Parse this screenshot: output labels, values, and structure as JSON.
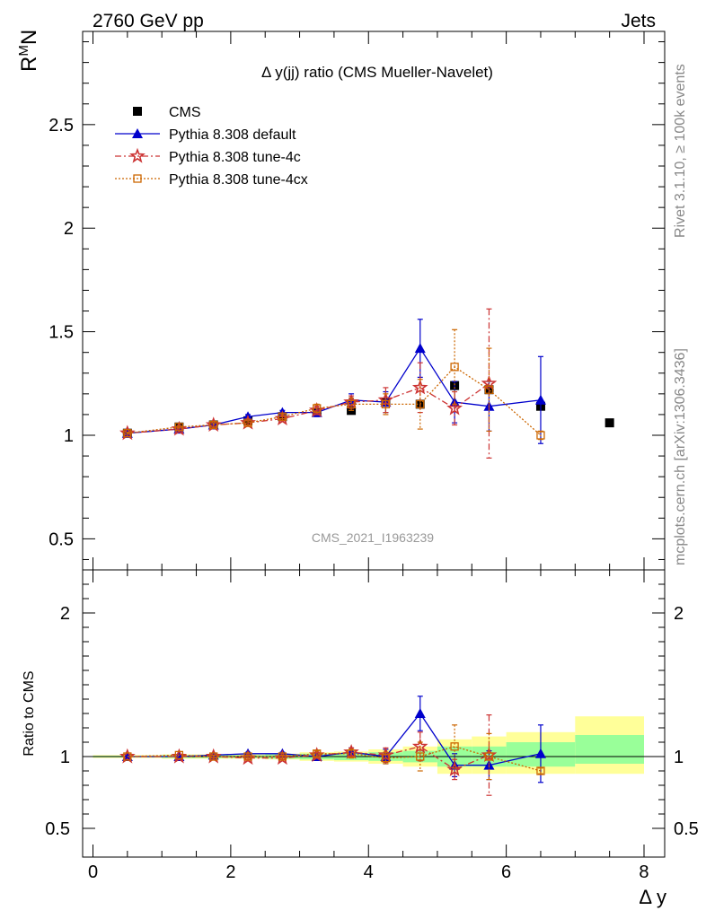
{
  "header": {
    "left": "2760 GeV pp",
    "right": "Jets"
  },
  "side_labels": {
    "rivet": "Rivet 3.1.10, ≥ 100k events",
    "mcplots": "mcplots.cern.ch [arXiv:1306.3436]"
  },
  "chart_data": {
    "type": "line",
    "title": "Δ y(jj) ratio (CMS Mueller-Navelet)",
    "watermark": "CMS_2021_I1963239",
    "ylabel": "R^M N",
    "ylabel_base": "R",
    "ylabel_sup": "M",
    "ylabel_sub": "N",
    "xlabel": "Δ y",
    "ratio_ylabel": "Ratio to CMS",
    "xlim": [
      -0.15,
      8.3
    ],
    "ylim": [
      0.35,
      2.95
    ],
    "ratio_ylim": [
      0.3,
      2.3
    ],
    "x_ticks": [
      "0",
      "2",
      "4",
      "6",
      "8"
    ],
    "y_ticks": [
      "0.5",
      "1",
      "1.5",
      "2",
      "2.5"
    ],
    "ratio_y_ticks": [
      "0.5",
      "1",
      "2"
    ],
    "legend_position": "top-left",
    "cms": {
      "name": "CMS",
      "color": "#000000",
      "x": [
        0.5,
        1.25,
        1.75,
        2.25,
        2.75,
        3.25,
        3.75,
        4.25,
        4.75,
        5.25,
        5.75,
        6.5,
        7.5
      ],
      "y": [
        1.01,
        1.04,
        1.05,
        1.07,
        1.09,
        1.11,
        1.12,
        1.16,
        1.15,
        1.24,
        1.22,
        1.14,
        1.06
      ]
    },
    "series": [
      {
        "name": "Pythia 8.308 default",
        "color": "#0000cc",
        "marker": "triangle",
        "x": [
          0.5,
          1.25,
          1.75,
          2.25,
          2.75,
          3.25,
          3.75,
          4.25,
          4.75,
          5.25,
          5.75,
          6.5
        ],
        "y": [
          1.01,
          1.03,
          1.05,
          1.09,
          1.11,
          1.11,
          1.17,
          1.16,
          1.42,
          1.16,
          1.14,
          1.17
        ],
        "err": [
          0.005,
          0.005,
          0.01,
          0.01,
          0.01,
          0.02,
          0.03,
          0.05,
          0.14,
          0.1,
          0.12,
          0.21
        ],
        "ratio": [
          1.0,
          1.0,
          1.01,
          1.02,
          1.02,
          1.0,
          1.03,
          1.0,
          1.3,
          0.94,
          0.94,
          1.02
        ],
        "ratio_err": [
          0.005,
          0.005,
          0.01,
          0.01,
          0.01,
          0.02,
          0.03,
          0.05,
          0.12,
          0.08,
          0.1,
          0.2
        ]
      },
      {
        "name": "Pythia 8.308 tune-4c",
        "color": "#cc3333",
        "marker": "star",
        "x": [
          0.5,
          1.25,
          1.75,
          2.25,
          2.75,
          3.25,
          3.75,
          4.25,
          4.75,
          5.25,
          5.75
        ],
        "y": [
          1.01,
          1.03,
          1.05,
          1.06,
          1.08,
          1.12,
          1.16,
          1.17,
          1.23,
          1.13,
          1.25
        ],
        "err": [
          0.005,
          0.005,
          0.01,
          0.01,
          0.01,
          0.02,
          0.03,
          0.06,
          0.12,
          0.08,
          0.36
        ],
        "ratio": [
          1.0,
          1.0,
          1.0,
          0.99,
          0.99,
          1.01,
          1.03,
          1.01,
          1.07,
          0.91,
          1.01
        ],
        "ratio_err": [
          0.005,
          0.005,
          0.01,
          0.01,
          0.01,
          0.02,
          0.03,
          0.05,
          0.1,
          0.07,
          0.28
        ]
      },
      {
        "name": "Pythia 8.308 tune-4cx",
        "color": "#cc6600",
        "marker": "open-square",
        "x": [
          0.5,
          1.25,
          1.75,
          2.25,
          2.75,
          3.25,
          3.75,
          4.25,
          4.75,
          5.25,
          5.75,
          6.5
        ],
        "y": [
          1.01,
          1.04,
          1.05,
          1.06,
          1.09,
          1.13,
          1.15,
          1.15,
          1.15,
          1.33,
          1.22,
          1.0
        ],
        "err": [
          0.005,
          0.005,
          0.01,
          0.01,
          0.01,
          0.02,
          0.03,
          0.05,
          0.12,
          0.18,
          0.2,
          0.02
        ],
        "ratio": [
          1.0,
          1.01,
          1.0,
          1.0,
          1.0,
          1.02,
          1.02,
          0.99,
          1.0,
          1.07,
          1.0,
          0.9
        ],
        "ratio_err": [
          0.005,
          0.005,
          0.01,
          0.01,
          0.01,
          0.02,
          0.03,
          0.04,
          0.1,
          0.15,
          0.16,
          0.02
        ]
      }
    ],
    "ratio_band": {
      "edges": [
        0.0,
        1.0,
        1.5,
        2.0,
        2.5,
        3.0,
        3.5,
        4.0,
        4.5,
        5.0,
        5.5,
        6.0,
        7.0,
        8.0
      ],
      "green_low": [
        0.995,
        0.99,
        0.99,
        0.99,
        0.985,
        0.98,
        0.975,
        0.97,
        0.96,
        0.93,
        0.93,
        0.93,
        0.95
      ],
      "green_high": [
        1.005,
        1.01,
        1.01,
        1.01,
        1.015,
        1.02,
        1.025,
        1.03,
        1.04,
        1.07,
        1.07,
        1.1,
        1.15
      ],
      "yellow_low": [
        0.99,
        0.985,
        0.985,
        0.985,
        0.98,
        0.97,
        0.965,
        0.95,
        0.93,
        0.88,
        0.88,
        0.88,
        0.88
      ],
      "yellow_high": [
        1.01,
        1.015,
        1.015,
        1.015,
        1.02,
        1.03,
        1.035,
        1.05,
        1.07,
        1.12,
        1.14,
        1.17,
        1.28
      ]
    }
  }
}
